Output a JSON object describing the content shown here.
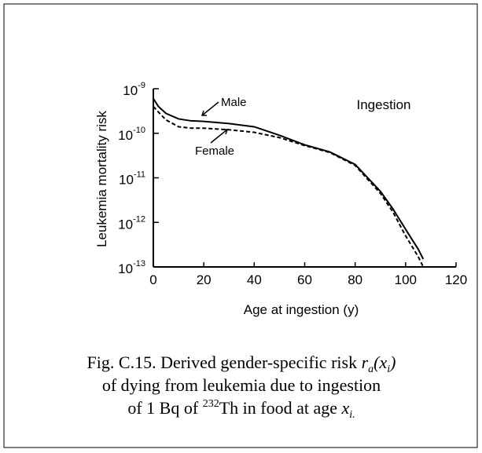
{
  "chart_data": {
    "type": "line",
    "xlabel": "Age at ingestion (y)",
    "ylabel": "Leukemia mortality risk",
    "annotations": {
      "male": "Male",
      "female": "Female",
      "route": "Ingestion"
    },
    "x": [
      0,
      2,
      5,
      10,
      15,
      20,
      30,
      40,
      50,
      60,
      70,
      80,
      90,
      95,
      100,
      105,
      107
    ],
    "series": [
      {
        "name": "Male",
        "color": "#000000",
        "dash": "none",
        "values": [
          6e-10,
          4e-10,
          2.8e-10,
          2.1e-10,
          1.9e-10,
          1.85e-10,
          1.65e-10,
          1.4e-10,
          9e-11,
          5.5e-11,
          3.8e-11,
          2e-11,
          5e-12,
          2e-12,
          7e-13,
          2.5e-13,
          1.5e-13
        ]
      },
      {
        "name": "Female",
        "color": "#000000",
        "dash": "5,3",
        "values": [
          4e-10,
          3e-10,
          2e-10,
          1.4e-10,
          1.3e-10,
          1.3e-10,
          1.2e-10,
          1.05e-10,
          8e-11,
          5.3e-11,
          3.7e-11,
          1.9e-11,
          4.5e-12,
          1.7e-12,
          5e-13,
          1.7e-13,
          1e-13
        ]
      }
    ],
    "xlim": [
      0,
      120
    ],
    "xticks": [
      0,
      20,
      40,
      60,
      80,
      100,
      120
    ],
    "ylim": [
      1e-13,
      1e-09
    ],
    "yscale": "log",
    "yticks": [
      {
        "value": 1e-09,
        "label": "10",
        "exponent": "-9"
      },
      {
        "value": 1e-10,
        "label": "10",
        "exponent": "-10"
      },
      {
        "value": 1e-11,
        "label": "10",
        "exponent": "-11"
      },
      {
        "value": 1e-12,
        "label": "10",
        "exponent": "-12"
      },
      {
        "value": 1e-13,
        "label": "10",
        "exponent": "-13"
      }
    ],
    "grid": false
  },
  "caption": {
    "line1": [
      "Fig. C.15. Derived gender-specific risk ",
      "r",
      "a",
      "(x",
      "i",
      ")"
    ],
    "line2": [
      "of dying from leukemia due to ingestion"
    ],
    "line3": [
      "of 1 Bq of ",
      "232",
      "Th in food at age ",
      "x",
      "i."
    ]
  }
}
